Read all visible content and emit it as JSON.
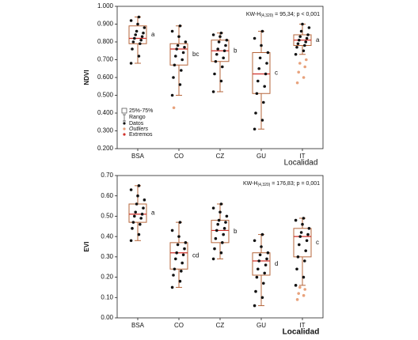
{
  "chart_data": [
    {
      "type": "box",
      "y_label": "NDVI",
      "x_label": "Localidad",
      "annotation": {
        "text": "KW-H",
        "sub": "(4,320)",
        "rest": " = 95,34; p < 0,001"
      },
      "categories": [
        "BSA",
        "CO",
        "CZ",
        "GU",
        "IT"
      ],
      "box_color": "#b5653a",
      "median_color": "#d0302a",
      "point_color": "#111111",
      "outlier_color": "#e8a27c",
      "groups": [
        {
          "q1": 0.79,
          "q3": 0.89,
          "median": 0.82,
          "min": 0.68,
          "max": 0.94,
          "letter": "a",
          "points": [
            0.68,
            0.72,
            0.76,
            0.79,
            0.8,
            0.81,
            0.82,
            0.83,
            0.84,
            0.85,
            0.86,
            0.88,
            0.9,
            0.92,
            0.94
          ],
          "outliers": []
        },
        {
          "q1": 0.67,
          "q3": 0.79,
          "median": 0.76,
          "min": 0.5,
          "max": 0.89,
          "letter": "bc",
          "points": [
            0.5,
            0.56,
            0.6,
            0.64,
            0.67,
            0.7,
            0.72,
            0.74,
            0.76,
            0.77,
            0.78,
            0.8,
            0.83,
            0.86,
            0.89
          ],
          "outliers": [
            0.43
          ]
        },
        {
          "q1": 0.69,
          "q3": 0.81,
          "median": 0.75,
          "min": 0.52,
          "max": 0.85,
          "letter": "b",
          "points": [
            0.52,
            0.58,
            0.62,
            0.66,
            0.69,
            0.71,
            0.73,
            0.75,
            0.76,
            0.78,
            0.8,
            0.81,
            0.83,
            0.84,
            0.85
          ],
          "outliers": []
        },
        {
          "q1": 0.51,
          "q3": 0.74,
          "median": 0.62,
          "min": 0.31,
          "max": 0.86,
          "letter": "c",
          "points": [
            0.31,
            0.36,
            0.4,
            0.46,
            0.51,
            0.55,
            0.58,
            0.62,
            0.65,
            0.68,
            0.71,
            0.74,
            0.78,
            0.82,
            0.86
          ],
          "outliers": []
        },
        {
          "q1": 0.78,
          "q3": 0.84,
          "median": 0.81,
          "min": 0.73,
          "max": 0.9,
          "letter": "a",
          "points": [
            0.73,
            0.75,
            0.77,
            0.78,
            0.79,
            0.8,
            0.81,
            0.82,
            0.83,
            0.84,
            0.86,
            0.88,
            0.9
          ],
          "outliers": [
            0.57,
            0.6,
            0.63,
            0.66,
            0.68,
            0.7
          ]
        }
      ],
      "ylim": [
        0.2,
        1.0
      ],
      "yticks": [
        {
          "value": 0.2,
          "label": "0.200"
        },
        {
          "value": 0.3,
          "label": "0.300"
        },
        {
          "value": 0.4,
          "label": "0.400"
        },
        {
          "value": 0.5,
          "label": "0.500"
        },
        {
          "value": 0.6,
          "label": "0.600"
        },
        {
          "value": 0.7,
          "label": "0.700"
        },
        {
          "value": 0.8,
          "label": "0.800"
        },
        {
          "value": 0.9,
          "label": "0.900"
        },
        {
          "value": 1.0,
          "label": "1.000"
        }
      ],
      "legend": [
        "25%-75%",
        "Rango",
        "Datos",
        "Outliers",
        "Extremos"
      ]
    },
    {
      "type": "box",
      "y_label": "EVI",
      "x_label": "Localidad",
      "annotation": {
        "text": "KW-H",
        "sub": "(4,320)",
        "rest": " = 176,83; p = 0,001"
      },
      "categories": [
        "BSA",
        "CO",
        "CZ",
        "GU",
        "IT"
      ],
      "box_color": "#b5653a",
      "median_color": "#d0302a",
      "point_color": "#111111",
      "outlier_color": "#e8a27c",
      "groups": [
        {
          "q1": 0.47,
          "q3": 0.56,
          "median": 0.51,
          "min": 0.38,
          "max": 0.65,
          "letter": "a",
          "points": [
            0.38,
            0.41,
            0.44,
            0.46,
            0.47,
            0.49,
            0.5,
            0.51,
            0.52,
            0.54,
            0.56,
            0.58,
            0.6,
            0.63,
            0.65
          ],
          "outliers": []
        },
        {
          "q1": 0.24,
          "q3": 0.37,
          "median": 0.32,
          "min": 0.15,
          "max": 0.47,
          "letter": "cd",
          "points": [
            0.15,
            0.18,
            0.21,
            0.23,
            0.24,
            0.27,
            0.29,
            0.31,
            0.32,
            0.34,
            0.36,
            0.37,
            0.4,
            0.43,
            0.47
          ],
          "outliers": []
        },
        {
          "q1": 0.37,
          "q3": 0.48,
          "median": 0.43,
          "min": 0.29,
          "max": 0.56,
          "letter": "b",
          "points": [
            0.29,
            0.32,
            0.34,
            0.37,
            0.39,
            0.41,
            0.43,
            0.44,
            0.46,
            0.47,
            0.48,
            0.5,
            0.52,
            0.54,
            0.56
          ],
          "outliers": []
        },
        {
          "q1": 0.21,
          "q3": 0.32,
          "median": 0.28,
          "min": 0.06,
          "max": 0.41,
          "letter": "d",
          "points": [
            0.06,
            0.1,
            0.13,
            0.17,
            0.2,
            0.22,
            0.24,
            0.26,
            0.28,
            0.29,
            0.31,
            0.32,
            0.35,
            0.38,
            0.41
          ],
          "outliers": []
        },
        {
          "q1": 0.3,
          "q3": 0.44,
          "median": 0.4,
          "min": 0.16,
          "max": 0.49,
          "letter": "c",
          "points": [
            0.16,
            0.2,
            0.24,
            0.28,
            0.3,
            0.33,
            0.36,
            0.38,
            0.4,
            0.41,
            0.42,
            0.44,
            0.46,
            0.48,
            0.49
          ],
          "outliers": [
            0.09,
            0.11,
            0.12,
            0.14,
            0.15
          ]
        }
      ],
      "ylim": [
        0.0,
        0.7
      ],
      "yticks": [
        {
          "value": 0.0,
          "label": "0.00"
        },
        {
          "value": 0.1,
          "label": "0.10"
        },
        {
          "value": 0.2,
          "label": "0.20"
        },
        {
          "value": 0.3,
          "label": "0.30"
        },
        {
          "value": 0.4,
          "label": "0.40"
        },
        {
          "value": 0.5,
          "label": "0.50"
        },
        {
          "value": 0.6,
          "label": "0.60"
        },
        {
          "value": 0.7,
          "label": "0.70"
        }
      ]
    }
  ]
}
